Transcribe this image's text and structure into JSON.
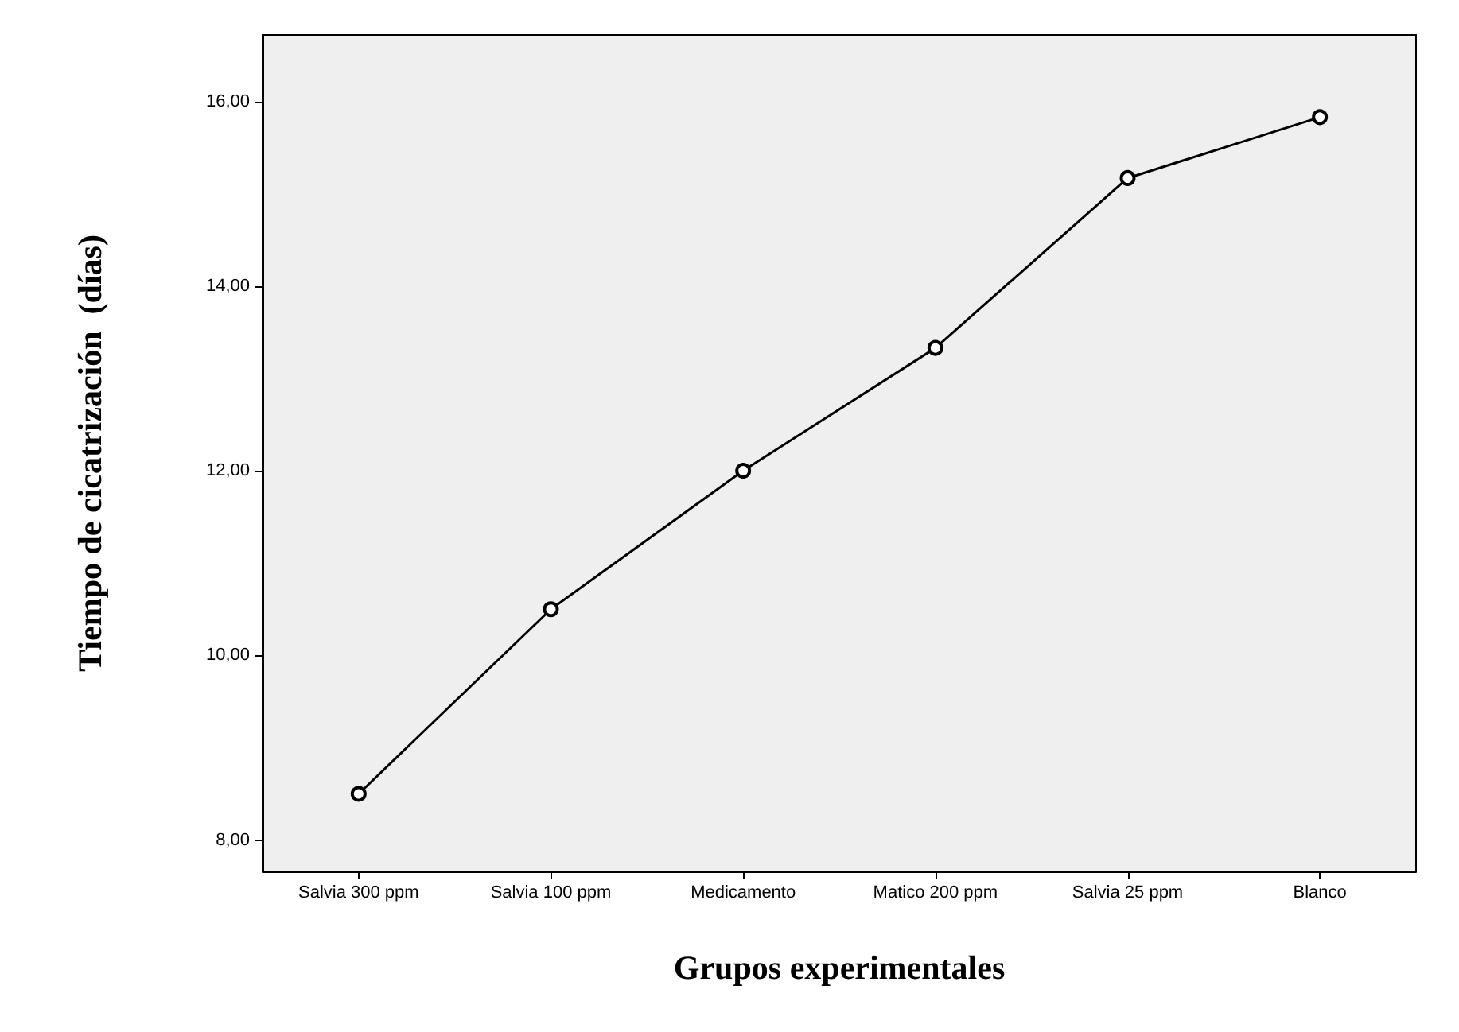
{
  "chart_data": {
    "type": "line",
    "xlabel": "Grupos experimentales",
    "ylabel": "Tiempo de cicatrización  (días)",
    "categories": [
      "Salvia 300 ppm",
      "Salvia 100 ppm",
      "Medicamento",
      "Matico 200 ppm",
      "Salvia 25 ppm",
      "Blanco"
    ],
    "values": [
      8.5,
      10.5,
      12.0,
      13.33,
      15.17,
      15.83
    ],
    "color": "#000000",
    "marker": "circle",
    "line_style": "solid",
    "grid": false,
    "ylim": [
      7.66,
      16.72
    ],
    "yticks": [
      {
        "value": 8,
        "label": "8,00"
      },
      {
        "value": 10,
        "label": "10,00"
      },
      {
        "value": 12,
        "label": "12,00"
      },
      {
        "value": 14,
        "label": "14,00"
      },
      {
        "value": 16,
        "label": "16,00"
      }
    ]
  }
}
